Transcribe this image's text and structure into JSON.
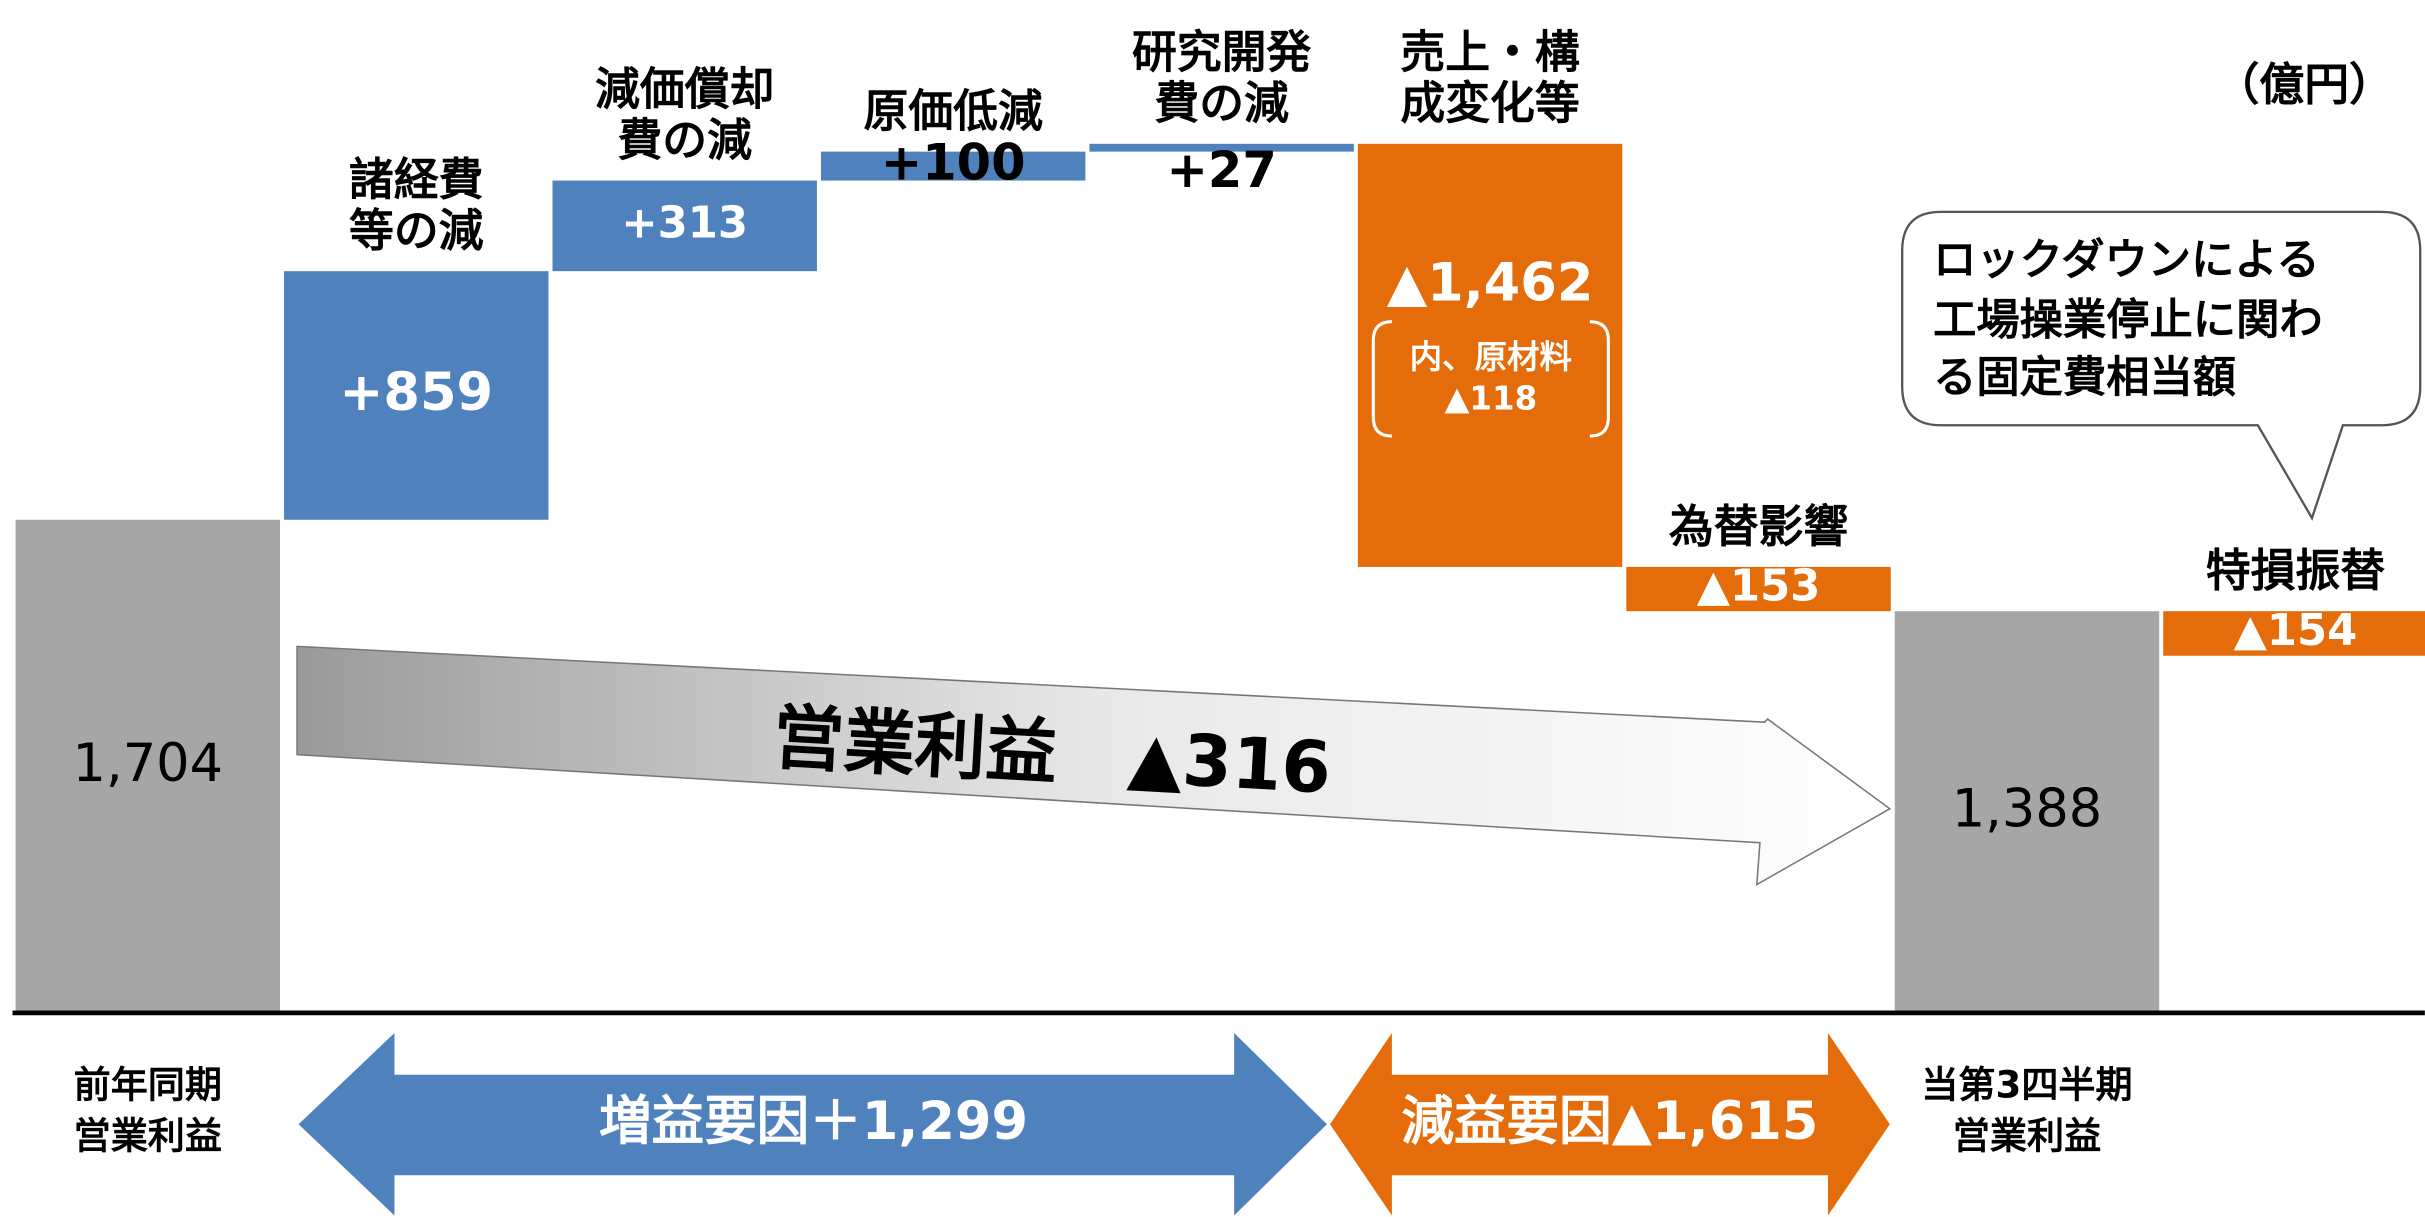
{
  "chart_data": {
    "type": "waterfall",
    "unit": "（億円）",
    "categories": [
      [
        "前年同期",
        "営業利益"
      ],
      [
        "諸経費",
        "等の減"
      ],
      [
        "減価償却",
        "費の減"
      ],
      [
        "原価低減"
      ],
      [
        "研究開発",
        "費の減"
      ],
      [
        "売上・構",
        "成変化等"
      ],
      [
        "為替影響"
      ],
      [
        "当第3四半期",
        "営業利益"
      ],
      [
        "特損振替"
      ]
    ],
    "measure": [
      "absolute",
      "relative",
      "relative",
      "relative",
      "relative",
      "relative",
      "relative",
      "absolute",
      "relative"
    ],
    "values": [
      1704,
      859,
      313,
      100,
      27,
      -1462,
      -153,
      1388,
      -154
    ],
    "value_labels": [
      "1,704",
      "+859",
      "+313",
      "+100",
      "+27",
      "▲1,462",
      "▲153",
      "1,388",
      "▲154"
    ],
    "colors": [
      "#a6a6a6",
      "#4f81bd",
      "#4f81bd",
      "#4f81bd",
      "#4f81bd",
      "#e46c0a",
      "#e46c0a",
      "#a6a6a6",
      "#e46c0a"
    ],
    "sub_note": [
      "内、原材料",
      "▲118"
    ],
    "arrow_label": "営業利益　▲316",
    "callout": [
      "ロックダウンによる",
      "工場操業停止に関わ",
      "る固定費相当額"
    ],
    "increase_label": "増益要因＋1,299",
    "decrease_label": "減益要因▲1,615"
  }
}
